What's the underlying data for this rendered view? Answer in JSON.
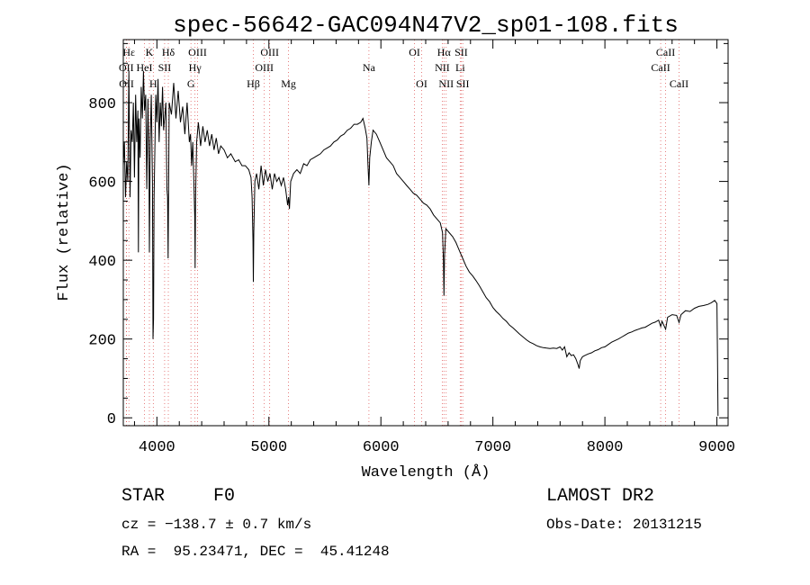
{
  "chart_data": {
    "type": "line",
    "title": "spec-56642-GAC094N47V2_sp01-108.fits",
    "xlabel": "Wavelength (Å)",
    "ylabel": "Flux (relative)",
    "xlim": [
      3700,
      9100
    ],
    "ylim": [
      -20,
      960
    ],
    "xticks": [
      4000,
      5000,
      6000,
      7000,
      8000,
      9000
    ],
    "yticks": [
      0,
      200,
      400,
      600,
      800
    ],
    "grid": false,
    "series": [
      {
        "values": [
          [
            3700,
            640
          ],
          [
            3710,
            700
          ],
          [
            3720,
            560
          ],
          [
            3730,
            650
          ],
          [
            3740,
            600
          ],
          [
            3750,
            880
          ],
          [
            3760,
            560
          ],
          [
            3770,
            730
          ],
          [
            3780,
            700
          ],
          [
            3790,
            800
          ],
          [
            3800,
            610
          ],
          [
            3810,
            820
          ],
          [
            3820,
            700
          ],
          [
            3830,
            780
          ],
          [
            3835,
            420
          ],
          [
            3840,
            760
          ],
          [
            3850,
            660
          ],
          [
            3860,
            840
          ],
          [
            3870,
            760
          ],
          [
            3880,
            880
          ],
          [
            3890,
            780
          ],
          [
            3900,
            820
          ],
          [
            3910,
            580
          ],
          [
            3920,
            810
          ],
          [
            3930,
            620
          ],
          [
            3933,
            420
          ],
          [
            3940,
            700
          ],
          [
            3950,
            820
          ],
          [
            3960,
            600
          ],
          [
            3965,
            200
          ],
          [
            3970,
            250
          ],
          [
            3975,
            560
          ],
          [
            3990,
            820
          ],
          [
            4000,
            750
          ],
          [
            4010,
            860
          ],
          [
            4020,
            700
          ],
          [
            4030,
            800
          ],
          [
            4040,
            740
          ],
          [
            4050,
            840
          ],
          [
            4060,
            730
          ],
          [
            4080,
            800
          ],
          [
            4090,
            580
          ],
          [
            4095,
            560
          ],
          [
            4100,
            405
          ],
          [
            4105,
            600
          ],
          [
            4110,
            800
          ],
          [
            4130,
            770
          ],
          [
            4150,
            850
          ],
          [
            4170,
            760
          ],
          [
            4190,
            830
          ],
          [
            4210,
            750
          ],
          [
            4230,
            790
          ],
          [
            4250,
            720
          ],
          [
            4270,
            800
          ],
          [
            4290,
            700
          ],
          [
            4300,
            720
          ],
          [
            4310,
            640
          ],
          [
            4320,
            700
          ],
          [
            4330,
            600
          ],
          [
            4338,
            510
          ],
          [
            4341,
            380
          ],
          [
            4345,
            560
          ],
          [
            4355,
            700
          ],
          [
            4370,
            750
          ],
          [
            4390,
            690
          ],
          [
            4410,
            740
          ],
          [
            4430,
            700
          ],
          [
            4450,
            730
          ],
          [
            4470,
            690
          ],
          [
            4490,
            720
          ],
          [
            4510,
            680
          ],
          [
            4530,
            710
          ],
          [
            4550,
            670
          ],
          [
            4570,
            690
          ],
          [
            4600,
            680
          ],
          [
            4630,
            660
          ],
          [
            4660,
            670
          ],
          [
            4700,
            650
          ],
          [
            4730,
            655
          ],
          [
            4760,
            640
          ],
          [
            4790,
            640
          ],
          [
            4820,
            630
          ],
          [
            4840,
            610
          ],
          [
            4850,
            560
          ],
          [
            4858,
            450
          ],
          [
            4861,
            345
          ],
          [
            4865,
            470
          ],
          [
            4875,
            600
          ],
          [
            4890,
            620
          ],
          [
            4910,
            580
          ],
          [
            4930,
            640
          ],
          [
            4950,
            590
          ],
          [
            4970,
            630
          ],
          [
            4990,
            600
          ],
          [
            5010,
            620
          ],
          [
            5030,
            580
          ],
          [
            5050,
            620
          ],
          [
            5070,
            600
          ],
          [
            5090,
            610
          ],
          [
            5110,
            590
          ],
          [
            5130,
            610
          ],
          [
            5150,
            580
          ],
          [
            5167,
            540
          ],
          [
            5175,
            560
          ],
          [
            5183,
            530
          ],
          [
            5195,
            600
          ],
          [
            5220,
            620
          ],
          [
            5250,
            630
          ],
          [
            5280,
            620
          ],
          [
            5310,
            645
          ],
          [
            5340,
            640
          ],
          [
            5370,
            655
          ],
          [
            5400,
            660
          ],
          [
            5430,
            665
          ],
          [
            5460,
            670
          ],
          [
            5490,
            680
          ],
          [
            5520,
            685
          ],
          [
            5550,
            690
          ],
          [
            5580,
            700
          ],
          [
            5610,
            705
          ],
          [
            5640,
            715
          ],
          [
            5670,
            720
          ],
          [
            5700,
            730
          ],
          [
            5730,
            735
          ],
          [
            5760,
            745
          ],
          [
            5790,
            745
          ],
          [
            5820,
            750
          ],
          [
            5840,
            760
          ],
          [
            5860,
            735
          ],
          [
            5875,
            710
          ],
          [
            5885,
            640
          ],
          [
            5893,
            590
          ],
          [
            5900,
            660
          ],
          [
            5915,
            700
          ],
          [
            5930,
            730
          ],
          [
            5960,
            720
          ],
          [
            5990,
            700
          ],
          [
            6020,
            680
          ],
          [
            6050,
            660
          ],
          [
            6080,
            650
          ],
          [
            6110,
            640
          ],
          [
            6140,
            620
          ],
          [
            6170,
            610
          ],
          [
            6200,
            600
          ],
          [
            6230,
            590
          ],
          [
            6260,
            580
          ],
          [
            6290,
            570
          ],
          [
            6320,
            565
          ],
          [
            6350,
            555
          ],
          [
            6380,
            545
          ],
          [
            6410,
            540
          ],
          [
            6440,
            530
          ],
          [
            6470,
            515
          ],
          [
            6500,
            505
          ],
          [
            6530,
            495
          ],
          [
            6550,
            470
          ],
          [
            6558,
            400
          ],
          [
            6563,
            310
          ],
          [
            6568,
            410
          ],
          [
            6580,
            480
          ],
          [
            6610,
            470
          ],
          [
            6640,
            460
          ],
          [
            6670,
            445
          ],
          [
            6700,
            425
          ],
          [
            6730,
            405
          ],
          [
            6760,
            385
          ],
          [
            6790,
            370
          ],
          [
            6820,
            360
          ],
          [
            6850,
            348
          ],
          [
            6880,
            335
          ],
          [
            6910,
            320
          ],
          [
            6940,
            305
          ],
          [
            6970,
            295
          ],
          [
            7000,
            280
          ],
          [
            7030,
            270
          ],
          [
            7060,
            262
          ],
          [
            7090,
            252
          ],
          [
            7120,
            245
          ],
          [
            7150,
            235
          ],
          [
            7180,
            228
          ],
          [
            7210,
            220
          ],
          [
            7240,
            212
          ],
          [
            7270,
            205
          ],
          [
            7300,
            198
          ],
          [
            7330,
            192
          ],
          [
            7360,
            188
          ],
          [
            7390,
            183
          ],
          [
            7420,
            180
          ],
          [
            7450,
            178
          ],
          [
            7480,
            177
          ],
          [
            7510,
            176
          ],
          [
            7540,
            177
          ],
          [
            7570,
            176
          ],
          [
            7600,
            180
          ],
          [
            7620,
            172
          ],
          [
            7640,
            180
          ],
          [
            7660,
            155
          ],
          [
            7680,
            165
          ],
          [
            7700,
            158
          ],
          [
            7720,
            160
          ],
          [
            7740,
            150
          ],
          [
            7760,
            135
          ],
          [
            7770,
            125
          ],
          [
            7780,
            145
          ],
          [
            7800,
            155
          ],
          [
            7820,
            158
          ],
          [
            7850,
            162
          ],
          [
            7880,
            165
          ],
          [
            7910,
            170
          ],
          [
            7940,
            173
          ],
          [
            7970,
            178
          ],
          [
            8000,
            180
          ],
          [
            8030,
            186
          ],
          [
            8060,
            192
          ],
          [
            8090,
            196
          ],
          [
            8120,
            200
          ],
          [
            8150,
            205
          ],
          [
            8180,
            210
          ],
          [
            8210,
            215
          ],
          [
            8240,
            218
          ],
          [
            8270,
            222
          ],
          [
            8300,
            225
          ],
          [
            8330,
            228
          ],
          [
            8360,
            230
          ],
          [
            8390,
            235
          ],
          [
            8420,
            240
          ],
          [
            8450,
            243
          ],
          [
            8480,
            248
          ],
          [
            8498,
            232
          ],
          [
            8510,
            245
          ],
          [
            8542,
            225
          ],
          [
            8560,
            255
          ],
          [
            8600,
            262
          ],
          [
            8640,
            260
          ],
          [
            8662,
            242
          ],
          [
            8680,
            262
          ],
          [
            8720,
            272
          ],
          [
            8760,
            270
          ],
          [
            8800,
            278
          ],
          [
            8840,
            283
          ],
          [
            8880,
            285
          ],
          [
            8920,
            288
          ],
          [
            8950,
            292
          ],
          [
            8980,
            298
          ],
          [
            9000,
            290
          ],
          [
            9005,
            160
          ],
          [
            9010,
            5
          ]
        ]
      }
    ],
    "spectral_lines": [
      {
        "label": "Hε",
        "wavelength": 3750,
        "row": 1
      },
      {
        "label": "K",
        "wavelength": 3933,
        "row": 1
      },
      {
        "label": "Hδ",
        "wavelength": 4102,
        "row": 1
      },
      {
        "label": "OIII",
        "wavelength": 4363,
        "row": 1
      },
      {
        "label": "OIII",
        "wavelength": 5007,
        "row": 1
      },
      {
        "label": "OI",
        "wavelength": 6300,
        "row": 1
      },
      {
        "label": "Hα",
        "wavelength": 6563,
        "row": 1
      },
      {
        "label": "SII",
        "wavelength": 6717,
        "row": 1
      },
      {
        "label": "CaII",
        "wavelength": 8542,
        "row": 1
      },
      {
        "label": "OII",
        "wavelength": 3727,
        "row": 2
      },
      {
        "label": "HeI",
        "wavelength": 3889,
        "row": 2
      },
      {
        "label": "SII",
        "wavelength": 4069,
        "row": 2
      },
      {
        "label": "Hγ",
        "wavelength": 4340,
        "row": 2
      },
      {
        "label": "OIII",
        "wavelength": 4959,
        "row": 2
      },
      {
        "label": "Na",
        "wavelength": 5893,
        "row": 2
      },
      {
        "label": "NII",
        "wavelength": 6548,
        "row": 2
      },
      {
        "label": "Li",
        "wavelength": 6708,
        "row": 2
      },
      {
        "label": "CaII",
        "wavelength": 8498,
        "row": 2
      },
      {
        "label": "OII",
        "wavelength": 3729,
        "row": 3
      },
      {
        "label": "H",
        "wavelength": 3968,
        "row": 3
      },
      {
        "label": "G",
        "wavelength": 4304,
        "row": 3
      },
      {
        "label": "Hβ",
        "wavelength": 4861,
        "row": 3
      },
      {
        "label": "Mg",
        "wavelength": 5175,
        "row": 3
      },
      {
        "label": "OI",
        "wavelength": 6364,
        "row": 3
      },
      {
        "label": "NII",
        "wavelength": 6583,
        "row": 3
      },
      {
        "label": "SII",
        "wavelength": 6731,
        "row": 3
      },
      {
        "label": "CaII",
        "wavelength": 8662,
        "row": 3
      }
    ]
  },
  "info": {
    "object_class": "STAR",
    "subclass": "F0",
    "survey": "LAMOST DR2",
    "redshift": "cz = −138.7 ± 0.7 km/s",
    "obs_date": "Obs-Date: 20131215",
    "coordinates": "RA =  95.23471, DEC =  45.41248"
  },
  "colors": {
    "spectrum": "#000000",
    "line_marker": "#e06060",
    "axes": "#000000"
  }
}
